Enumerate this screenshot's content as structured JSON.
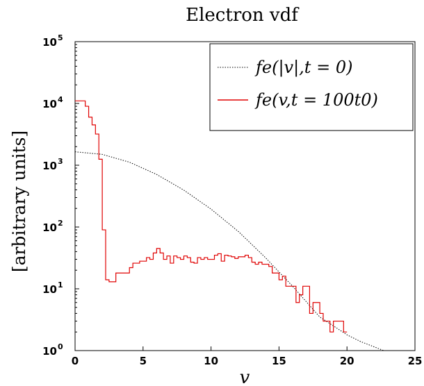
{
  "chart_data": {
    "type": "line",
    "title": "Electron vdf",
    "xlabel": "v",
    "ylabel": "[arbitrary units]",
    "xlim": [
      0,
      25
    ],
    "ylim": [
      1,
      100000
    ],
    "yscale": "log",
    "x_ticks": [
      "0",
      "5",
      "10",
      "15",
      "20",
      "25"
    ],
    "y_ticks": [
      {
        "base": "10",
        "exp": "0"
      },
      {
        "base": "10",
        "exp": "1"
      },
      {
        "base": "10",
        "exp": "2"
      },
      {
        "base": "10",
        "exp": "3"
      },
      {
        "base": "10",
        "exp": "4"
      },
      {
        "base": "10",
        "exp": "5"
      }
    ],
    "grid": false,
    "legend_position": "top-right",
    "series": [
      {
        "name": "fe(|v|,t = 0)",
        "style": "dotted",
        "color": "#000000",
        "x": [
          0,
          2,
          4,
          6,
          8,
          10,
          12,
          14,
          16,
          18,
          20,
          21,
          22,
          22.7
        ],
        "y": [
          1650,
          1500,
          1120,
          710,
          395,
          195,
          85,
          32,
          11,
          3.5,
          1.8,
          1.4,
          1.15,
          1.0
        ]
      },
      {
        "name": "fe(v,t = 100t0)",
        "style": "step",
        "color": "#e00000",
        "x": [
          0,
          0.25,
          0.5,
          0.75,
          1.0,
          1.25,
          1.5,
          1.75,
          2.0,
          2.25,
          2.5,
          2.75,
          3.0,
          3.25,
          3.5,
          3.75,
          4.0,
          4.25,
          4.5,
          4.75,
          5.0,
          5.25,
          5.5,
          5.75,
          6.0,
          6.25,
          6.5,
          6.75,
          7.0,
          7.25,
          7.5,
          7.75,
          8.0,
          8.25,
          8.5,
          8.75,
          9.0,
          9.25,
          9.5,
          9.75,
          10.0,
          10.25,
          10.5,
          10.75,
          11.0,
          11.25,
          11.5,
          11.75,
          12.0,
          12.25,
          12.5,
          12.75,
          13.0,
          13.25,
          13.5,
          13.75,
          14.0,
          14.25,
          14.5,
          14.75,
          15.0,
          15.25,
          15.5,
          15.75,
          16.0,
          16.25,
          16.5,
          16.75,
          17.0,
          17.25,
          17.5,
          17.75,
          18.0,
          18.25,
          18.5,
          18.75,
          19.0,
          19.25,
          19.5,
          19.75
        ],
        "y": [
          11000,
          11000,
          11000,
          9000,
          6000,
          4500,
          3200,
          1250,
          90,
          14,
          13,
          13,
          18,
          18,
          18,
          18,
          22,
          26,
          26,
          28,
          28,
          32,
          30,
          38,
          45,
          38,
          30,
          34,
          26,
          34,
          32,
          30,
          34,
          32,
          27,
          26,
          32,
          30,
          32,
          30,
          30,
          35,
          37,
          28,
          35,
          34,
          33,
          31,
          33,
          33,
          35,
          32,
          27,
          25,
          27,
          25,
          25,
          23,
          18,
          18,
          14,
          16,
          11,
          11,
          11,
          6,
          8,
          11,
          11,
          4,
          6,
          6,
          4,
          3,
          3,
          2,
          3,
          3,
          3,
          2
        ]
      }
    ]
  }
}
